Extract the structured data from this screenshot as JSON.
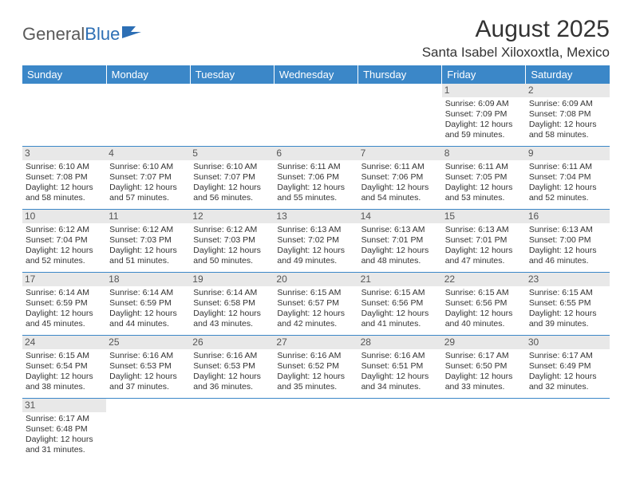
{
  "logo": {
    "text1": "General",
    "text2": "Blue"
  },
  "title": "August 2025",
  "location": "Santa Isabel Xiloxoxtla, Mexico",
  "day_headers": [
    "Sunday",
    "Monday",
    "Tuesday",
    "Wednesday",
    "Thursday",
    "Friday",
    "Saturday"
  ],
  "colors": {
    "header_bg": "#3b87c8",
    "header_text": "#ffffff",
    "daynum_bg": "#e8e8e8",
    "border": "#3b87c8",
    "logo_gray": "#5a5a5a",
    "logo_blue": "#2d6fb5"
  },
  "weeks": [
    [
      {
        "empty": true
      },
      {
        "empty": true
      },
      {
        "empty": true
      },
      {
        "empty": true
      },
      {
        "empty": true
      },
      {
        "day": "1",
        "sunrise": "Sunrise: 6:09 AM",
        "sunset": "Sunset: 7:09 PM",
        "daylight": "Daylight: 12 hours and 59 minutes."
      },
      {
        "day": "2",
        "sunrise": "Sunrise: 6:09 AM",
        "sunset": "Sunset: 7:08 PM",
        "daylight": "Daylight: 12 hours and 58 minutes."
      }
    ],
    [
      {
        "day": "3",
        "sunrise": "Sunrise: 6:10 AM",
        "sunset": "Sunset: 7:08 PM",
        "daylight": "Daylight: 12 hours and 58 minutes."
      },
      {
        "day": "4",
        "sunrise": "Sunrise: 6:10 AM",
        "sunset": "Sunset: 7:07 PM",
        "daylight": "Daylight: 12 hours and 57 minutes."
      },
      {
        "day": "5",
        "sunrise": "Sunrise: 6:10 AM",
        "sunset": "Sunset: 7:07 PM",
        "daylight": "Daylight: 12 hours and 56 minutes."
      },
      {
        "day": "6",
        "sunrise": "Sunrise: 6:11 AM",
        "sunset": "Sunset: 7:06 PM",
        "daylight": "Daylight: 12 hours and 55 minutes."
      },
      {
        "day": "7",
        "sunrise": "Sunrise: 6:11 AM",
        "sunset": "Sunset: 7:06 PM",
        "daylight": "Daylight: 12 hours and 54 minutes."
      },
      {
        "day": "8",
        "sunrise": "Sunrise: 6:11 AM",
        "sunset": "Sunset: 7:05 PM",
        "daylight": "Daylight: 12 hours and 53 minutes."
      },
      {
        "day": "9",
        "sunrise": "Sunrise: 6:11 AM",
        "sunset": "Sunset: 7:04 PM",
        "daylight": "Daylight: 12 hours and 52 minutes."
      }
    ],
    [
      {
        "day": "10",
        "sunrise": "Sunrise: 6:12 AM",
        "sunset": "Sunset: 7:04 PM",
        "daylight": "Daylight: 12 hours and 52 minutes."
      },
      {
        "day": "11",
        "sunrise": "Sunrise: 6:12 AM",
        "sunset": "Sunset: 7:03 PM",
        "daylight": "Daylight: 12 hours and 51 minutes."
      },
      {
        "day": "12",
        "sunrise": "Sunrise: 6:12 AM",
        "sunset": "Sunset: 7:03 PM",
        "daylight": "Daylight: 12 hours and 50 minutes."
      },
      {
        "day": "13",
        "sunrise": "Sunrise: 6:13 AM",
        "sunset": "Sunset: 7:02 PM",
        "daylight": "Daylight: 12 hours and 49 minutes."
      },
      {
        "day": "14",
        "sunrise": "Sunrise: 6:13 AM",
        "sunset": "Sunset: 7:01 PM",
        "daylight": "Daylight: 12 hours and 48 minutes."
      },
      {
        "day": "15",
        "sunrise": "Sunrise: 6:13 AM",
        "sunset": "Sunset: 7:01 PM",
        "daylight": "Daylight: 12 hours and 47 minutes."
      },
      {
        "day": "16",
        "sunrise": "Sunrise: 6:13 AM",
        "sunset": "Sunset: 7:00 PM",
        "daylight": "Daylight: 12 hours and 46 minutes."
      }
    ],
    [
      {
        "day": "17",
        "sunrise": "Sunrise: 6:14 AM",
        "sunset": "Sunset: 6:59 PM",
        "daylight": "Daylight: 12 hours and 45 minutes."
      },
      {
        "day": "18",
        "sunrise": "Sunrise: 6:14 AM",
        "sunset": "Sunset: 6:59 PM",
        "daylight": "Daylight: 12 hours and 44 minutes."
      },
      {
        "day": "19",
        "sunrise": "Sunrise: 6:14 AM",
        "sunset": "Sunset: 6:58 PM",
        "daylight": "Daylight: 12 hours and 43 minutes."
      },
      {
        "day": "20",
        "sunrise": "Sunrise: 6:15 AM",
        "sunset": "Sunset: 6:57 PM",
        "daylight": "Daylight: 12 hours and 42 minutes."
      },
      {
        "day": "21",
        "sunrise": "Sunrise: 6:15 AM",
        "sunset": "Sunset: 6:56 PM",
        "daylight": "Daylight: 12 hours and 41 minutes."
      },
      {
        "day": "22",
        "sunrise": "Sunrise: 6:15 AM",
        "sunset": "Sunset: 6:56 PM",
        "daylight": "Daylight: 12 hours and 40 minutes."
      },
      {
        "day": "23",
        "sunrise": "Sunrise: 6:15 AM",
        "sunset": "Sunset: 6:55 PM",
        "daylight": "Daylight: 12 hours and 39 minutes."
      }
    ],
    [
      {
        "day": "24",
        "sunrise": "Sunrise: 6:15 AM",
        "sunset": "Sunset: 6:54 PM",
        "daylight": "Daylight: 12 hours and 38 minutes."
      },
      {
        "day": "25",
        "sunrise": "Sunrise: 6:16 AM",
        "sunset": "Sunset: 6:53 PM",
        "daylight": "Daylight: 12 hours and 37 minutes."
      },
      {
        "day": "26",
        "sunrise": "Sunrise: 6:16 AM",
        "sunset": "Sunset: 6:53 PM",
        "daylight": "Daylight: 12 hours and 36 minutes."
      },
      {
        "day": "27",
        "sunrise": "Sunrise: 6:16 AM",
        "sunset": "Sunset: 6:52 PM",
        "daylight": "Daylight: 12 hours and 35 minutes."
      },
      {
        "day": "28",
        "sunrise": "Sunrise: 6:16 AM",
        "sunset": "Sunset: 6:51 PM",
        "daylight": "Daylight: 12 hours and 34 minutes."
      },
      {
        "day": "29",
        "sunrise": "Sunrise: 6:17 AM",
        "sunset": "Sunset: 6:50 PM",
        "daylight": "Daylight: 12 hours and 33 minutes."
      },
      {
        "day": "30",
        "sunrise": "Sunrise: 6:17 AM",
        "sunset": "Sunset: 6:49 PM",
        "daylight": "Daylight: 12 hours and 32 minutes."
      }
    ],
    [
      {
        "day": "31",
        "sunrise": "Sunrise: 6:17 AM",
        "sunset": "Sunset: 6:48 PM",
        "daylight": "Daylight: 12 hours and 31 minutes."
      },
      {
        "empty": true
      },
      {
        "empty": true
      },
      {
        "empty": true
      },
      {
        "empty": true
      },
      {
        "empty": true
      },
      {
        "empty": true
      }
    ]
  ]
}
